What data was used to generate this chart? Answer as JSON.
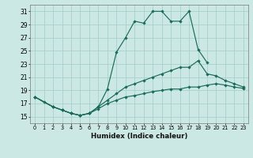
{
  "xlabel": "Humidex (Indice chaleur)",
  "background_color": "#cce8e4",
  "grid_color": "#a0ccc8",
  "line_color": "#1a6b5a",
  "ylim": [
    14,
    32
  ],
  "xlim": [
    -0.5,
    23.5
  ],
  "yticks": [
    15,
    17,
    19,
    21,
    23,
    25,
    27,
    29,
    31
  ],
  "xticks": [
    0,
    1,
    2,
    3,
    4,
    5,
    6,
    7,
    8,
    9,
    10,
    11,
    12,
    13,
    14,
    15,
    16,
    17,
    18,
    19,
    20,
    21,
    22,
    23
  ],
  "curve1_x": [
    0,
    1,
    2,
    3,
    4,
    5,
    6,
    7,
    8,
    9,
    10,
    11,
    12,
    13,
    14,
    15,
    16,
    17,
    18,
    19
  ],
  "curve1_y": [
    18.0,
    17.2,
    16.5,
    16.0,
    15.5,
    15.2,
    15.5,
    16.5,
    19.2,
    24.8,
    27.0,
    29.5,
    29.2,
    31.0,
    31.0,
    29.5,
    29.5,
    31.0,
    25.2,
    23.2
  ],
  "curve2_x": [
    0,
    2,
    3,
    4,
    5,
    6,
    7,
    8,
    9,
    10,
    11,
    12,
    13,
    14,
    15,
    16,
    17,
    18,
    19,
    20,
    21,
    22,
    23
  ],
  "curve2_y": [
    18.0,
    16.5,
    16.0,
    15.5,
    15.2,
    15.5,
    16.5,
    17.5,
    18.5,
    19.5,
    20.0,
    20.5,
    21.0,
    21.5,
    22.0,
    22.5,
    22.5,
    23.5,
    21.5,
    21.2,
    20.5,
    20.0,
    19.5
  ],
  "curve3_x": [
    0,
    2,
    3,
    4,
    5,
    6,
    7,
    8,
    9,
    10,
    11,
    12,
    13,
    14,
    15,
    16,
    17,
    18,
    19,
    20,
    21,
    22,
    23
  ],
  "curve3_y": [
    18.0,
    16.5,
    16.0,
    15.5,
    15.2,
    15.5,
    16.2,
    17.0,
    17.5,
    18.0,
    18.2,
    18.5,
    18.8,
    19.0,
    19.2,
    19.2,
    19.5,
    19.5,
    19.8,
    20.0,
    19.8,
    19.5,
    19.3
  ]
}
